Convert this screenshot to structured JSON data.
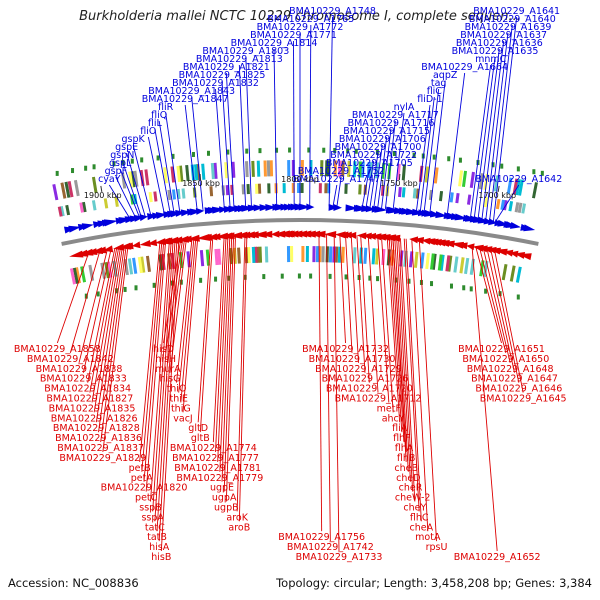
{
  "title": "Burkholderia mallei NCTC 10229 chromosome I, complete sequen...",
  "footer": {
    "accession": "Accession: NC_008836",
    "topology": "Topology: circular; Length: 3,458,208 bp; Genes: 3,384"
  },
  "colors": {
    "forward_strand": "#0000dd",
    "reverse_strand": "#dd0000",
    "backbone": "#8a8a8a",
    "tick_mark": "#2e8b2e"
  },
  "scale": {
    "unit": "kbp",
    "visible_range_kbp": [
      1680,
      1920
    ],
    "tick_labels": [
      {
        "kbp": 1900,
        "text": "1900 kbp"
      },
      {
        "kbp": 1850,
        "text": "1850 kbp"
      },
      {
        "kbp": 1800,
        "text": "1800 kbp"
      },
      {
        "kbp": 1750,
        "text": "1750 kbp"
      },
      {
        "kbp": 1700,
        "text": "1700 kbp"
      }
    ]
  },
  "forward_genes": [
    {
      "name": "BMA10229_A1642",
      "kbp": 1699
    },
    {
      "name": "BMA10229_A1641",
      "kbp": 1700
    },
    {
      "name": "BMA10229_A1640",
      "kbp": 1702
    },
    {
      "name": "BMA10229_A1639",
      "kbp": 1704
    },
    {
      "name": "BMA10229_A1637",
      "kbp": 1706
    },
    {
      "name": "BMA10229_A1636",
      "kbp": 1708
    },
    {
      "name": "BMA10229_A1635",
      "kbp": 1710
    },
    {
      "name": "mnmC",
      "kbp": 1712
    },
    {
      "name": "BMA10229_A1664",
      "kbp": 1724
    },
    {
      "name": "aqpZ",
      "kbp": 1733
    },
    {
      "name": "tag",
      "kbp": 1736
    },
    {
      "name": "fliC",
      "kbp": 1738
    },
    {
      "name": "fliD-1",
      "kbp": 1740
    },
    {
      "name": "nylA",
      "kbp": 1752
    },
    {
      "name": "BMA10229_A1717",
      "kbp": 1756
    },
    {
      "name": "BMA10229_A1716",
      "kbp": 1758
    },
    {
      "name": "BMA10229_A1715",
      "kbp": 1760
    },
    {
      "name": "BMA10229_A1706",
      "kbp": 1762
    },
    {
      "name": "BMA10229_A1700",
      "kbp": 1764
    },
    {
      "name": "BMA10229_A1722",
      "kbp": 1766
    },
    {
      "name": "BMA10229_A1705",
      "kbp": 1768
    },
    {
      "name": "BMA10229_A1752",
      "kbp": 1781
    },
    {
      "name": "BMA10229_A1747",
      "kbp": 1783
    },
    {
      "name": "BMA10229_A1748",
      "kbp": 1785
    },
    {
      "name": "BMA10229_A1765",
      "kbp": 1795
    },
    {
      "name": "BMA10229_A1772",
      "kbp": 1800
    },
    {
      "name": "BMA10229_A1771",
      "kbp": 1803
    },
    {
      "name": "BMA10229_A1814",
      "kbp": 1812
    },
    {
      "name": "BMA10229_A1803",
      "kbp": 1825
    },
    {
      "name": "BMA10229_A1813",
      "kbp": 1828
    },
    {
      "name": "BMA10229_A1821",
      "kbp": 1834
    },
    {
      "name": "BMA10229_A1825",
      "kbp": 1836
    },
    {
      "name": "BMA10229_A1832",
      "kbp": 1839
    },
    {
      "name": "BMA10229_A1843",
      "kbp": 1850
    },
    {
      "name": "BMA10229_A1847",
      "kbp": 1853
    },
    {
      "name": "fliO",
      "kbp": 1870
    },
    {
      "name": "gspK",
      "kbp": 1877
    },
    {
      "name": "gspE",
      "kbp": 1880
    },
    {
      "name": "gspL",
      "kbp": 1883
    },
    {
      "name": "cyaY",
      "kbp": 1888
    },
    {
      "name": "gspF",
      "kbp": 1885
    },
    {
      "name": "fliL",
      "kbp": 1867
    },
    {
      "name": "fliQ",
      "kbp": 1865
    },
    {
      "name": "gspN",
      "kbp": 1882
    },
    {
      "name": "fliR",
      "kbp": 1862
    }
  ],
  "reverse_genes": [
    {
      "name": "BMA10229_A1858",
      "kbp": 1912
    },
    {
      "name": "BMA10229_A1842",
      "kbp": 1906
    },
    {
      "name": "BMA10229_A1820",
      "kbp": 1872
    },
    {
      "name": "sspA",
      "kbp": 1868
    },
    {
      "name": "BMA10229_A1838",
      "kbp": 1902
    },
    {
      "name": "tatB",
      "kbp": 1866
    },
    {
      "name": "hisH",
      "kbp": 1862
    },
    {
      "name": "hisG",
      "kbp": 1860
    },
    {
      "name": "thiG",
      "kbp": 1855
    },
    {
      "name": "BMA10229_A1833",
      "kbp": 1900
    },
    {
      "name": "hisB",
      "kbp": 1864
    },
    {
      "name": "thiO",
      "kbp": 1857
    },
    {
      "name": "BMA10229_A1756",
      "kbp": 1790
    },
    {
      "name": "BMA10229_A1827",
      "kbp": 1897
    },
    {
      "name": "murA",
      "kbp": 1861
    },
    {
      "name": "gltB",
      "kbp": 1846
    },
    {
      "name": "aroK",
      "kbp": 1829
    },
    {
      "name": "BMA10229_A1826",
      "kbp": 1895
    },
    {
      "name": "tatC",
      "kbp": 1867
    },
    {
      "name": "thiE",
      "kbp": 1856
    },
    {
      "name": "gltD",
      "kbp": 1847
    },
    {
      "name": "aroB",
      "kbp": 1828
    },
    {
      "name": "BMA10229_A1834",
      "kbp": 1898
    },
    {
      "name": "hisD",
      "kbp": 1863
    },
    {
      "name": "BMA10229_A1720",
      "kbp": 1768
    },
    {
      "name": "BMA10229_A1726",
      "kbp": 1770
    },
    {
      "name": "BMA10229_A1729",
      "kbp": 1773
    },
    {
      "name": "BMA10229_A1730",
      "kbp": 1776
    },
    {
      "name": "BMA10229_A1732",
      "kbp": 1779
    },
    {
      "name": "BMA10229_A1733",
      "kbp": 1782
    },
    {
      "name": "BMA10229_A1742",
      "kbp": 1786
    },
    {
      "name": "BMA10229_A1712",
      "kbp": 1764
    },
    {
      "name": "sspB",
      "kbp": 1869
    },
    {
      "name": "BMA10229_A1779",
      "kbp": 1837
    },
    {
      "name": "ugpB",
      "kbp": 1834
    },
    {
      "name": "BMA10229_A1835",
      "kbp": 1896
    },
    {
      "name": "hisA",
      "kbp": 1865
    },
    {
      "name": "ugpA",
      "kbp": 1835
    },
    {
      "name": "vacJ",
      "kbp": 1854
    },
    {
      "name": "BMA10229_A1836",
      "kbp": 1893
    },
    {
      "name": "petC",
      "kbp": 1871
    },
    {
      "name": "ugpE",
      "kbp": 1836
    },
    {
      "name": "BMA10229_A1828",
      "kbp": 1894
    },
    {
      "name": "BMA10229_A1781",
      "kbp": 1838
    },
    {
      "name": "BMA10229_A1837",
      "kbp": 1892
    },
    {
      "name": "BMA10229_A1774",
      "kbp": 1840
    },
    {
      "name": "petA",
      "kbp": 1873
    },
    {
      "name": "BMA10229_A1829",
      "kbp": 1891
    },
    {
      "name": "petB",
      "kbp": 1874
    },
    {
      "name": "BMA10229_A1777",
      "kbp": 1839
    },
    {
      "name": "fliA",
      "kbp": 1754
    },
    {
      "name": "flhB",
      "kbp": 1751
    },
    {
      "name": "cheA",
      "kbp": 1744
    },
    {
      "name": "rpsU",
      "kbp": 1737
    },
    {
      "name": "cheY",
      "kbp": 1747
    },
    {
      "name": "flhC",
      "kbp": 1745
    },
    {
      "name": "flhA",
      "kbp": 1752
    },
    {
      "name": "motA",
      "kbp": 1741
    },
    {
      "name": "flhF",
      "kbp": 1753
    },
    {
      "name": "cheW-2",
      "kbp": 1748
    },
    {
      "name": "ahcY",
      "kbp": 1757
    },
    {
      "name": "cheR",
      "kbp": 1749
    },
    {
      "name": "metF",
      "kbp": 1759
    },
    {
      "name": "cheD",
      "kbp": 1750
    },
    {
      "name": "cheB",
      "kbp": 1751
    },
    {
      "name": "BMA10229_A1645",
      "kbp": 1697
    },
    {
      "name": "BMA10229_A1646",
      "kbp": 1699
    },
    {
      "name": "BMA10229_A1647",
      "kbp": 1701
    },
    {
      "name": "BMA10229_A1648",
      "kbp": 1703
    },
    {
      "name": "BMA10229_A1650",
      "kbp": 1705
    },
    {
      "name": "BMA10229_A1651",
      "kbp": 1707
    },
    {
      "name": "BMA10229_A1652",
      "kbp": 1709
    }
  ]
}
